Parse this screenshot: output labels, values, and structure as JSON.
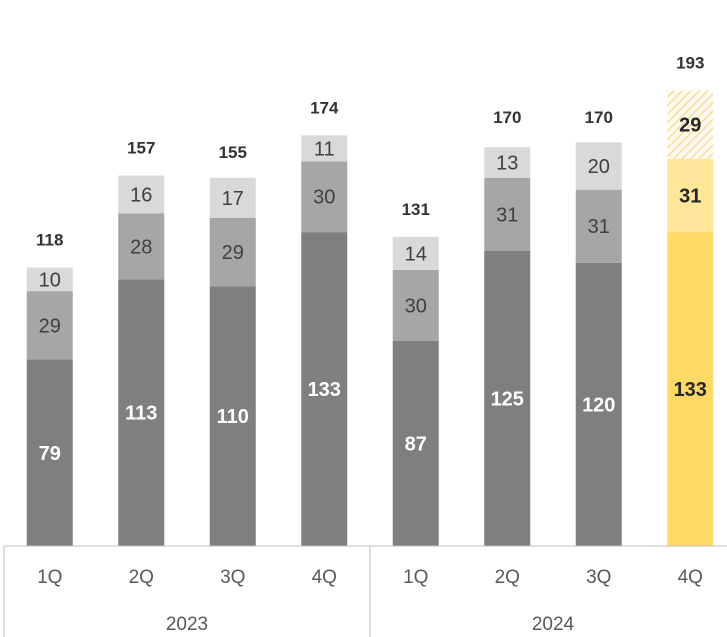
{
  "chart_data": {
    "type": "bar",
    "stacked": true,
    "title": "",
    "xlabel": "",
    "ylabel": "",
    "ylim": [
      0,
      200
    ],
    "grid": false,
    "categories": [
      "1Q",
      "2Q",
      "3Q",
      "4Q",
      "1Q",
      "2Q",
      "3Q",
      "4Q"
    ],
    "groups": [
      {
        "label": "2023",
        "span": [
          0,
          3
        ]
      },
      {
        "label": "2024",
        "span": [
          4,
          7
        ]
      }
    ],
    "series": [
      {
        "values": [
          79,
          113,
          110,
          133,
          87,
          125,
          120,
          133
        ]
      },
      {
        "values": [
          29,
          28,
          29,
          30,
          30,
          31,
          31,
          31
        ]
      },
      {
        "values": [
          10,
          16,
          17,
          11,
          14,
          13,
          20,
          29
        ]
      }
    ],
    "totals": [
      118,
      157,
      155,
      174,
      131,
      170,
      170,
      193
    ],
    "highlight_index": 7,
    "colors": {
      "series": [
        "#7f7f7f",
        "#a6a6a6",
        "#d9d9d9"
      ],
      "highlight": [
        "#ffd966",
        "#ffe699",
        "#fff2cc"
      ],
      "highlight_hatch": "#f2d98c",
      "segment_text_dark": "#404040",
      "segment_text_light": "#ffffff",
      "axis_line": "#bfbfbf"
    }
  }
}
